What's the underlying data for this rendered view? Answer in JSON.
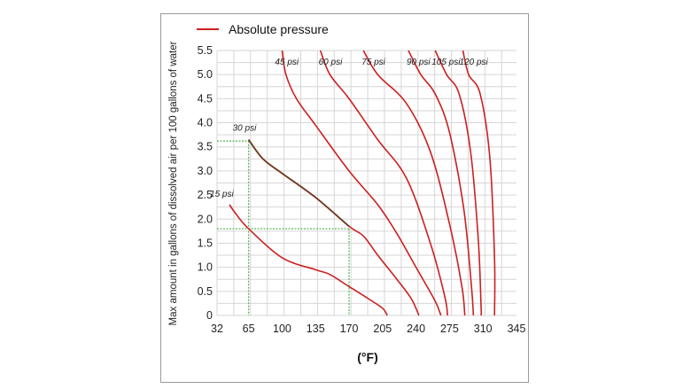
{
  "chart_data": {
    "type": "line",
    "legend": {
      "label": "Absolute pressure",
      "color": "#cc1f1f",
      "placement": "top"
    },
    "xlabel": "(°F)",
    "ylabel": "Max amount in gallons of dissolved air per 100 gallons of water",
    "x_ticks": [
      "32",
      "65",
      "100",
      "135",
      "170",
      "205",
      "240",
      "275",
      "310",
      "345"
    ],
    "y_ticks": [
      "0",
      "0.5",
      "1.0",
      "1.5",
      "2.0",
      "2.5",
      "3.0",
      "3.5",
      "4.0",
      "4.5",
      "5.0",
      "5.5"
    ],
    "ylim": [
      0,
      5.5
    ],
    "grid": true,
    "colors": {
      "curve": "#cc1f1f",
      "highlight_curve": "#6e3b22",
      "guide": "#5cb85c",
      "grid": "#d6d6d6"
    },
    "series": [
      {
        "name": "15 psi",
        "points": [
          [
            45,
            2.3
          ],
          [
            52,
            2.1
          ],
          [
            65,
            1.8
          ],
          [
            100,
            1.2
          ],
          [
            135,
            0.95
          ],
          [
            150,
            0.85
          ],
          [
            170,
            0.6
          ],
          [
            190,
            0.35
          ],
          [
            205,
            0.15
          ],
          [
            210,
            0
          ]
        ]
      },
      {
        "name": "30 psi",
        "points": [
          [
            65,
            3.65
          ],
          [
            80,
            3.25
          ],
          [
            100,
            2.95
          ],
          [
            135,
            2.45
          ],
          [
            170,
            1.85
          ],
          [
            185,
            1.65
          ],
          [
            200,
            1.25
          ],
          [
            220,
            0.75
          ],
          [
            235,
            0.35
          ],
          [
            243,
            0
          ]
        ]
      },
      {
        "name": "45 psi",
        "points": [
          [
            100,
            5.5
          ],
          [
            104,
            5.0
          ],
          [
            115,
            4.5
          ],
          [
            135,
            3.95
          ],
          [
            170,
            3.0
          ],
          [
            200,
            2.3
          ],
          [
            220,
            1.7
          ],
          [
            240,
            1.0
          ],
          [
            260,
            0.3
          ],
          [
            266,
            0
          ]
        ]
      },
      {
        "name": "60 psi",
        "points": [
          [
            140,
            5.5
          ],
          [
            150,
            5.0
          ],
          [
            170,
            4.5
          ],
          [
            200,
            3.65
          ],
          [
            230,
            2.85
          ],
          [
            255,
            1.5
          ],
          [
            270,
            0.4
          ],
          [
            273,
            0
          ]
        ]
      },
      {
        "name": "75 psi",
        "points": [
          [
            185,
            5.5
          ],
          [
            200,
            5.0
          ],
          [
            230,
            4.4
          ],
          [
            255,
            3.4
          ],
          [
            275,
            1.9
          ],
          [
            288,
            0.6
          ],
          [
            291,
            0
          ]
        ]
      },
      {
        "name": "90 psi",
        "points": [
          [
            232,
            5.5
          ],
          [
            245,
            5.0
          ],
          [
            260,
            4.6
          ],
          [
            275,
            3.8
          ],
          [
            290,
            2.2
          ],
          [
            298,
            0.6
          ],
          [
            300,
            0
          ]
        ]
      },
      {
        "name": "105 psi",
        "points": [
          [
            260,
            5.5
          ],
          [
            272,
            5.0
          ],
          [
            285,
            4.6
          ],
          [
            297,
            3.4
          ],
          [
            305,
            1.6
          ],
          [
            308,
            0.2
          ],
          [
            308,
            0
          ]
        ]
      },
      {
        "name": "120 psi",
        "points": [
          [
            289,
            5.5
          ],
          [
            295,
            5.0
          ],
          [
            307,
            4.6
          ],
          [
            317,
            3.3
          ],
          [
            322,
            1.2
          ],
          [
            322,
            0
          ]
        ]
      }
    ],
    "guides": [
      {
        "x": 65,
        "y": 3.62
      },
      {
        "x": 170,
        "y": 1.8
      }
    ]
  }
}
